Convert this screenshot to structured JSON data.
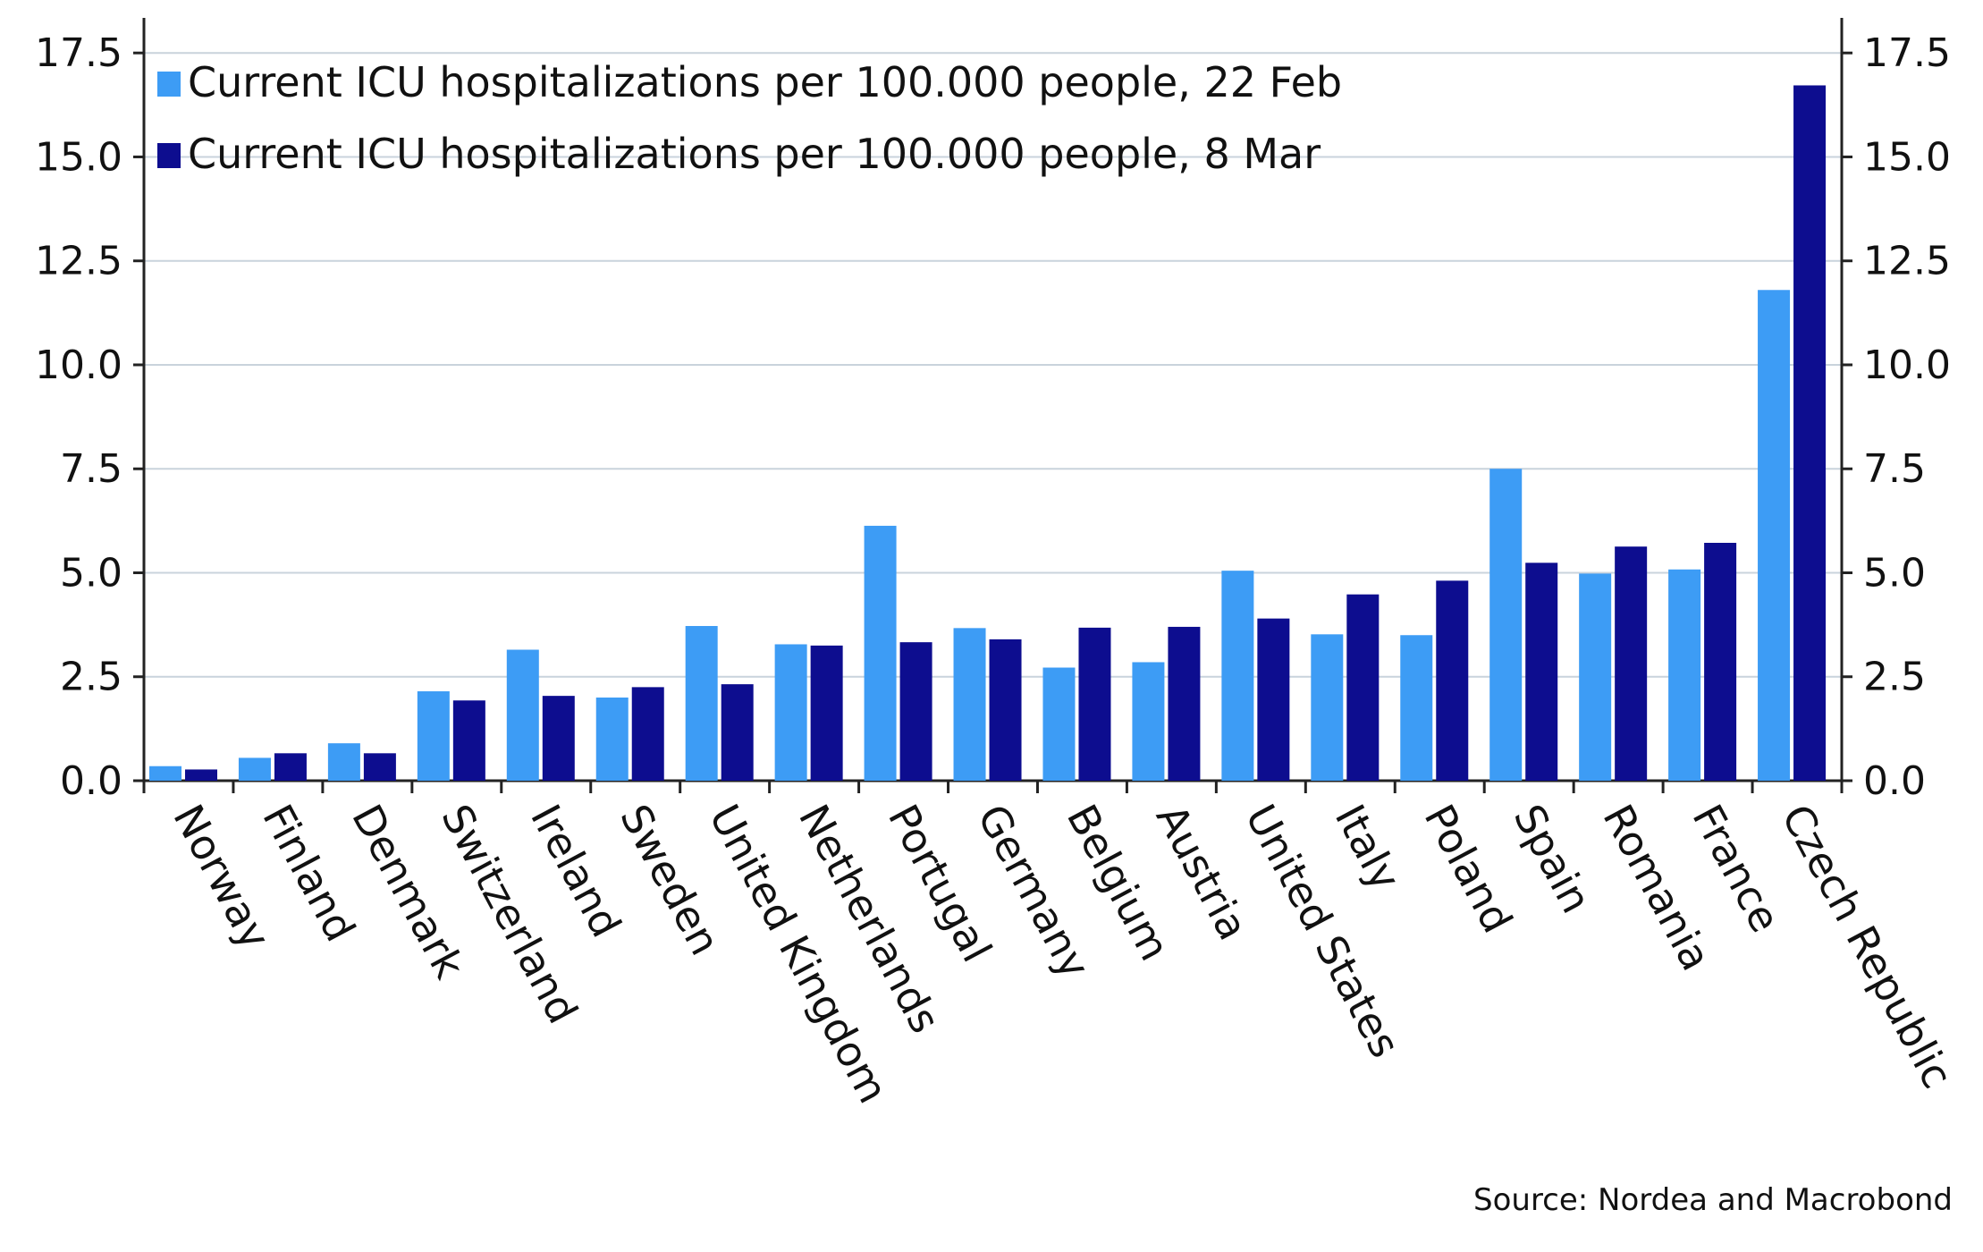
{
  "chart_data": {
    "type": "bar",
    "title": "",
    "xlabel": "",
    "ylabel": "",
    "ylim": [
      0,
      18.3
    ],
    "yticks": [
      0.0,
      2.5,
      5.0,
      7.5,
      10.0,
      12.5,
      15.0,
      17.5
    ],
    "ytick_labels": [
      "0.0",
      "2.5",
      "5.0",
      "7.5",
      "10.0",
      "12.5",
      "15.0",
      "17.5"
    ],
    "y_axis_sides": "both",
    "grid": "horizontal",
    "legend_position": "top-left",
    "categories": [
      "Norway",
      "Finland",
      "Denmark",
      "Switzerland",
      "Ireland",
      "Sweden",
      "United Kingdom",
      "Netherlands",
      "Portugal",
      "Germany",
      "Belgium",
      "Austria",
      "United States",
      "Italy",
      "Poland",
      "Spain",
      "Romania",
      "France",
      "Czech Republic"
    ],
    "series": [
      {
        "name": "Current ICU hospitalizations per 100.000 people, 22 Feb",
        "color": "#3d9cf5",
        "values": [
          0.35,
          0.55,
          0.9,
          2.15,
          3.15,
          2.0,
          3.72,
          3.28,
          6.13,
          3.67,
          2.72,
          2.85,
          5.05,
          3.52,
          3.5,
          7.5,
          4.98,
          5.08,
          11.8
        ]
      },
      {
        "name": "Current ICU hospitalizations per 100.000 people, 8 Mar",
        "color": "#0d0d8f",
        "values": [
          0.27,
          0.66,
          0.66,
          1.93,
          2.04,
          2.25,
          2.32,
          3.25,
          3.33,
          3.4,
          3.68,
          3.7,
          3.9,
          4.48,
          4.81,
          5.24,
          5.63,
          5.72,
          16.72
        ]
      }
    ],
    "source": "Source: Nordea and Macrobond"
  }
}
